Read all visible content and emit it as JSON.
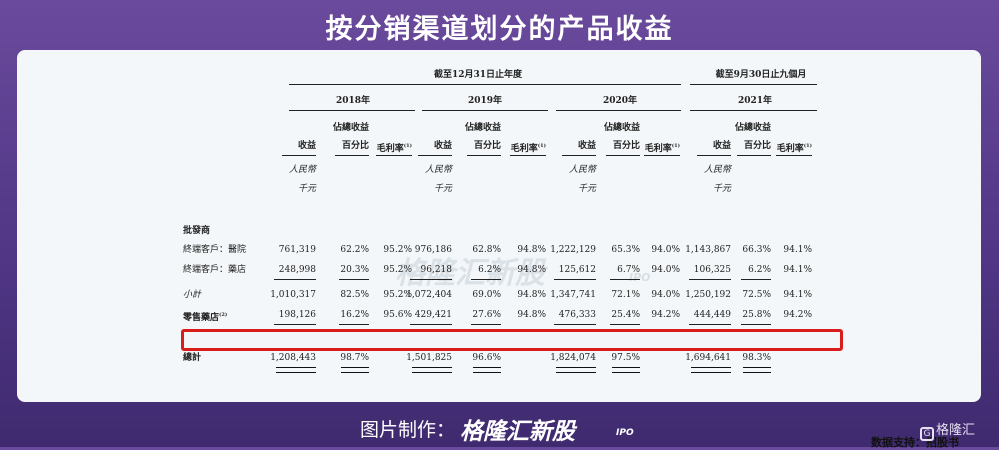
{
  "title": "按分销渠道划分的产品收益",
  "watermark": {
    "text": "格隆汇新股",
    "suffix": "IPO"
  },
  "table": {
    "group_year_end": "截至12月31日止年度",
    "group_nine_months": "截至9月30日止九個月",
    "years": [
      "2018年",
      "2019年",
      "2020年",
      "2021年"
    ],
    "col_revenue": "收益",
    "col_share_top": "佔總收益",
    "col_share_bottom": "百分比",
    "col_margin": "毛利率",
    "margin_note": "(1)",
    "unit_top": "人民幣",
    "unit_bottom": "千元",
    "section_wholesale": "批發商",
    "rows": [
      {
        "label": "終端客戶：醫院",
        "cells": [
          "761,319",
          "62.2%",
          "95.2%",
          "976,186",
          "62.8%",
          "94.8%",
          "1,222,129",
          "65.3%",
          "94.0%",
          "1,143,867",
          "66.3%",
          "94.1%"
        ]
      },
      {
        "label": "終端客戶：藥店",
        "cells": [
          "248,998",
          "20.3%",
          "95.2%",
          "96,218",
          "6.2%",
          "94.8%",
          "125,612",
          "6.7%",
          "94.0%",
          "106,325",
          "6.2%",
          "94.1%"
        ]
      },
      {
        "label": "小計",
        "cells": [
          "1,010,317",
          "82.5%",
          "95.2%",
          "1,072,404",
          "69.0%",
          "94.8%",
          "1,347,741",
          "72.1%",
          "94.0%",
          "1,250,192",
          "72.5%",
          "94.1%"
        ]
      },
      {
        "label": "零售藥店",
        "label_note": "(2)",
        "cells": [
          "198,126",
          "16.2%",
          "95.6%",
          "429,421",
          "27.6%",
          "94.8%",
          "476,333",
          "25.4%",
          "94.2%",
          "444,449",
          "25.8%",
          "94.2%"
        ]
      },
      {
        "label": "總計",
        "cells": [
          "1,208,443",
          "98.7%",
          "",
          "1,501,825",
          "96.6%",
          "",
          "1,824,074",
          "97.5%",
          "",
          "1,694,641",
          "98.3%",
          ""
        ]
      }
    ]
  },
  "source": "数据支持：招股书",
  "footer": {
    "prefix": "图片制作：",
    "brand": "格隆汇新股",
    "brand_suffix": "IPO",
    "logo_text": "格隆汇",
    "logo_icon": "g-logo-icon"
  },
  "colors": {
    "background": "#5b3f8e",
    "highlight": "#d91c1c",
    "card": "#f4f7f9"
  }
}
